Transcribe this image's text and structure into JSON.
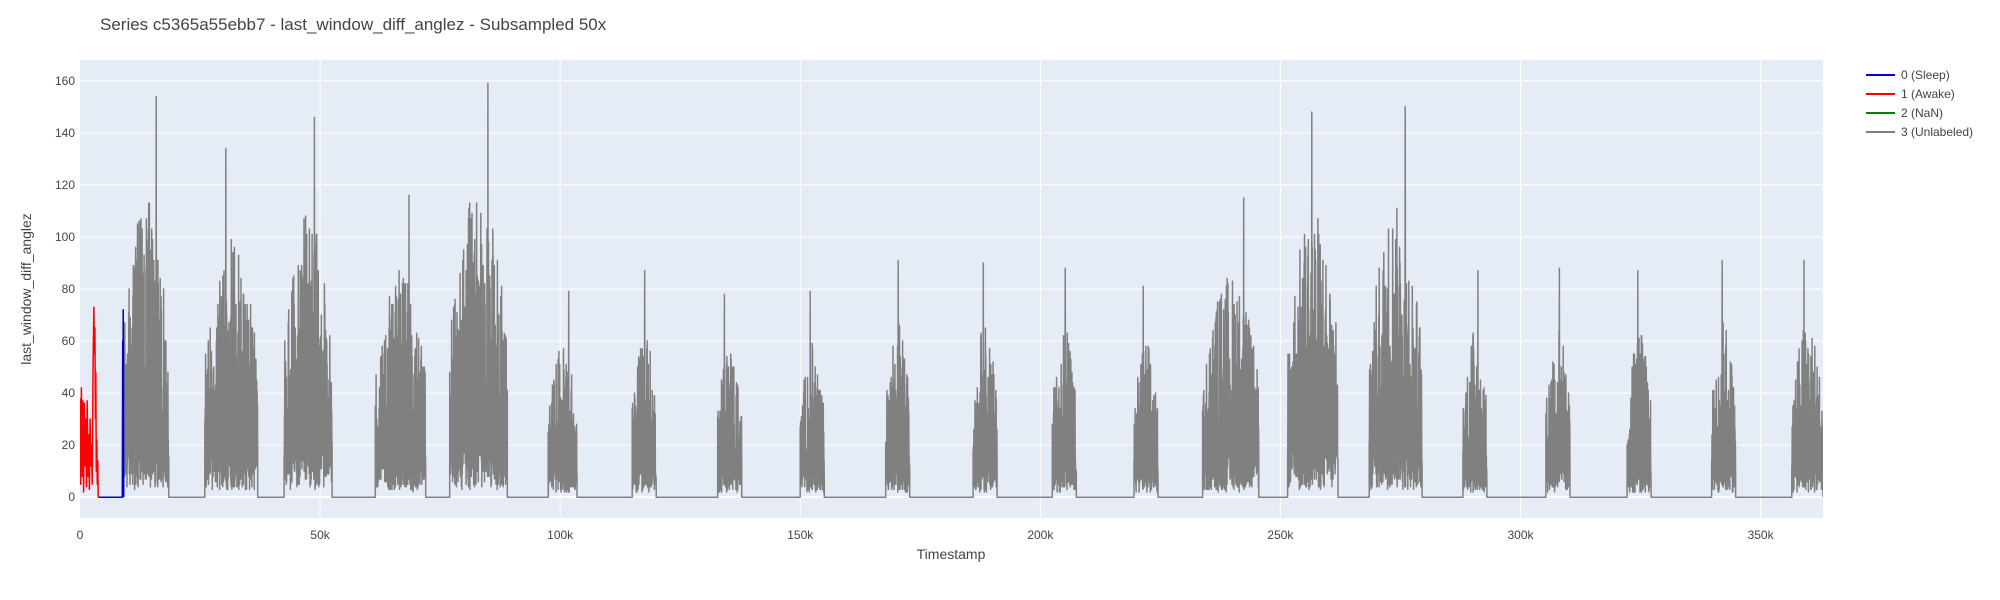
{
  "chart_data": {
    "type": "line",
    "title": "Series c5365a55ebb7 - last_window_diff_anglez - Subsampled 50x",
    "xlabel": "Timestamp",
    "ylabel": "last_window_diff_anglez",
    "xlim": [
      0,
      363000
    ],
    "ylim": [
      -8,
      168
    ],
    "x_ticks": [
      {
        "value": 0,
        "label": "0"
      },
      {
        "value": 50000,
        "label": "50k"
      },
      {
        "value": 100000,
        "label": "100k"
      },
      {
        "value": 150000,
        "label": "150k"
      },
      {
        "value": 200000,
        "label": "200k"
      },
      {
        "value": 250000,
        "label": "250k"
      },
      {
        "value": 300000,
        "label": "300k"
      },
      {
        "value": 350000,
        "label": "350k"
      }
    ],
    "y_ticks": [
      {
        "value": 0,
        "label": "0"
      },
      {
        "value": 20,
        "label": "20"
      },
      {
        "value": 40,
        "label": "40"
      },
      {
        "value": 60,
        "label": "60"
      },
      {
        "value": 80,
        "label": "80"
      },
      {
        "value": 100,
        "label": "100"
      },
      {
        "value": 120,
        "label": "120"
      },
      {
        "value": 140,
        "label": "140"
      },
      {
        "value": 160,
        "label": "160"
      }
    ],
    "grid": true,
    "legend_position": "top-right-outside",
    "series": [
      {
        "name": "0 (Sleep)",
        "color": "#0000cc",
        "segments": [
          [
            [
              3800,
              0
            ],
            [
              4200,
              0
            ],
            [
              8800,
              0
            ],
            [
              8900,
              60
            ],
            [
              8950,
              30
            ],
            [
              9000,
              72
            ],
            [
              9050,
              50
            ],
            [
              9100,
              0
            ]
          ]
        ]
      },
      {
        "name": "1 (Awake)",
        "color": "#ff0000",
        "segments": [
          [
            [
              0,
              38
            ],
            [
              150,
              5
            ],
            [
              300,
              42
            ],
            [
              450,
              8
            ],
            [
              600,
              37
            ],
            [
              750,
              2
            ],
            [
              900,
              36
            ],
            [
              1050,
              12
            ],
            [
              1200,
              30
            ],
            [
              1350,
              4
            ],
            [
              1500,
              37
            ],
            [
              1650,
              8
            ],
            [
              1800,
              24
            ],
            [
              1950,
              3
            ],
            [
              2100,
              30
            ],
            [
              2250,
              12
            ],
            [
              2400,
              20
            ],
            [
              2550,
              5
            ],
            [
              2700,
              48
            ],
            [
              2800,
              60
            ],
            [
              2900,
              73
            ],
            [
              3000,
              55
            ],
            [
              3100,
              65
            ],
            [
              3200,
              30
            ],
            [
              3300,
              48
            ],
            [
              3400,
              10
            ],
            [
              3500,
              22
            ],
            [
              3600,
              5
            ],
            [
              3700,
              14
            ],
            [
              3800,
              0
            ]
          ]
        ]
      },
      {
        "name": "2 (NaN)",
        "color": "#008000",
        "segments": []
      },
      {
        "name": "3 (Unlabeled)",
        "color": "#808080",
        "segments": [],
        "active_bursts": [
          [
            9100,
            18500,
            154
          ],
          [
            26000,
            37000,
            134
          ],
          [
            42500,
            52500,
            146
          ],
          [
            61500,
            72000,
            116
          ],
          [
            77000,
            89000,
            159
          ],
          [
            97500,
            103500,
            79
          ],
          [
            115000,
            120000,
            87
          ],
          [
            132800,
            137800,
            78
          ],
          [
            150000,
            155000,
            79
          ],
          [
            167800,
            172800,
            91
          ],
          [
            186000,
            191000,
            90
          ],
          [
            202500,
            207500,
            88
          ],
          [
            219500,
            224500,
            81
          ],
          [
            233800,
            245500,
            115
          ],
          [
            251500,
            262000,
            148
          ],
          [
            268500,
            279500,
            150
          ],
          [
            288000,
            293000,
            87
          ],
          [
            305300,
            310300,
            88
          ],
          [
            322200,
            327200,
            87
          ],
          [
            339800,
            344800,
            91
          ],
          [
            356500,
            363000,
            91
          ]
        ]
      }
    ]
  }
}
